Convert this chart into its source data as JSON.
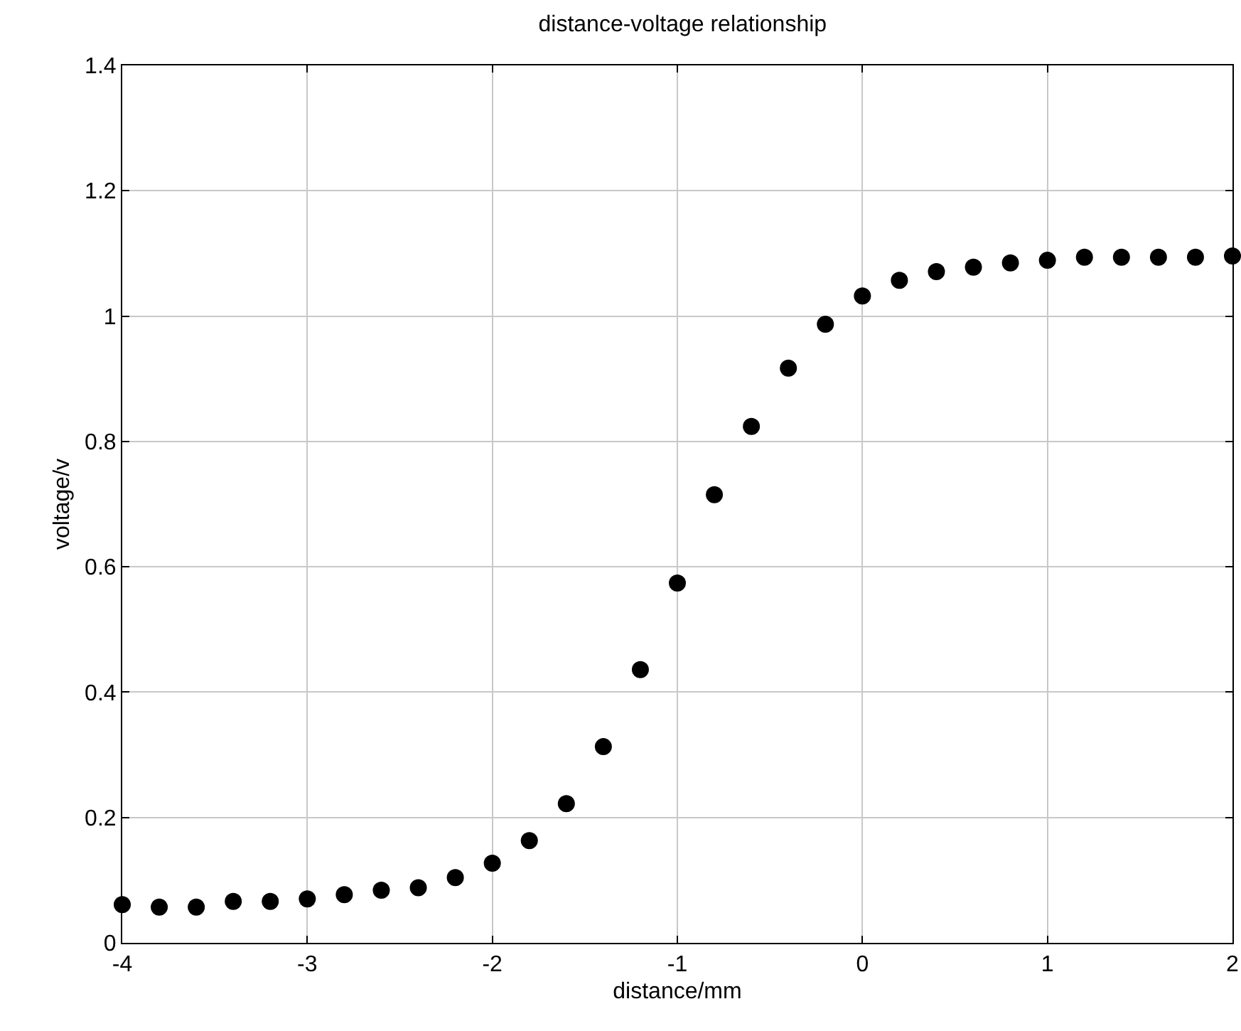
{
  "chart_data": {
    "type": "scatter",
    "title": "distance-voltage relationship",
    "xlabel": "distance/mm",
    "ylabel": "voltage/v",
    "x": [
      -4,
      -3.8,
      -3.6,
      -3.4,
      -3.2,
      -3,
      -2.8,
      -2.6,
      -2.4,
      -2.2,
      -2,
      -1.8,
      -1.6,
      -1.4,
      -1.2,
      -1,
      -0.8,
      -0.6,
      -0.4,
      -0.2,
      0,
      0.2,
      0.4,
      0.6,
      0.8,
      1,
      1.2,
      1.4,
      1.6,
      1.8,
      2
    ],
    "series": [
      {
        "color": "#000000",
        "values": [
          0.061,
          0.057,
          0.057,
          0.066,
          0.066,
          0.07,
          0.077,
          0.084,
          0.088,
          0.104,
          0.127,
          0.163,
          0.222,
          0.313,
          0.436,
          0.574,
          0.715,
          0.824,
          0.917,
          0.987,
          1.032,
          1.057,
          1.071,
          1.078,
          1.085,
          1.089,
          1.094,
          1.094,
          1.094,
          1.094,
          1.096
        ]
      }
    ],
    "xlim": [
      -4,
      2
    ],
    "xticks": [
      -4,
      -3,
      -2,
      -1,
      0,
      1,
      2
    ],
    "ylim": [
      0,
      1.4
    ],
    "yticks": [
      0,
      0.2,
      0.4,
      0.6,
      0.8,
      1,
      1.2,
      1.4
    ],
    "grid": true,
    "marker": "circle"
  }
}
